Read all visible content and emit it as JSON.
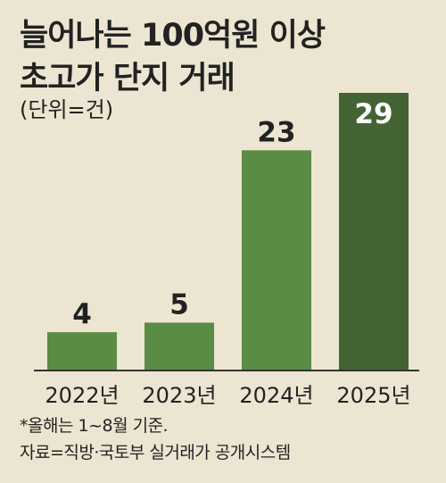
{
  "chart_data": {
    "type": "bar",
    "title": "늘어나는 100억원 이상 초고가 단지 거래",
    "title_lines": [
      "늘어나는 100억원 이상",
      "초고가 단지 거래"
    ],
    "unit": "(단위=건)",
    "categories": [
      "2022년",
      "2023년",
      "2024년",
      "2025년"
    ],
    "values": [
      4,
      5,
      23,
      29
    ],
    "value_labels": [
      "4",
      "5",
      "23",
      "29"
    ],
    "ylim": [
      0,
      29
    ],
    "grid": false,
    "legend": "none",
    "bar_colors": [
      "#5b8c45",
      "#5b8c45",
      "#5b8c45",
      "#446332"
    ],
    "axis_color": "#333333"
  },
  "notes": [
    "*올해는 1~8월 기준.",
    "자료=직방·국토부 실거래가 공개시스템"
  ],
  "colors": {
    "background": "#ece5d1",
    "text": "#222222",
    "label_on_dark": "#ffffff"
  }
}
